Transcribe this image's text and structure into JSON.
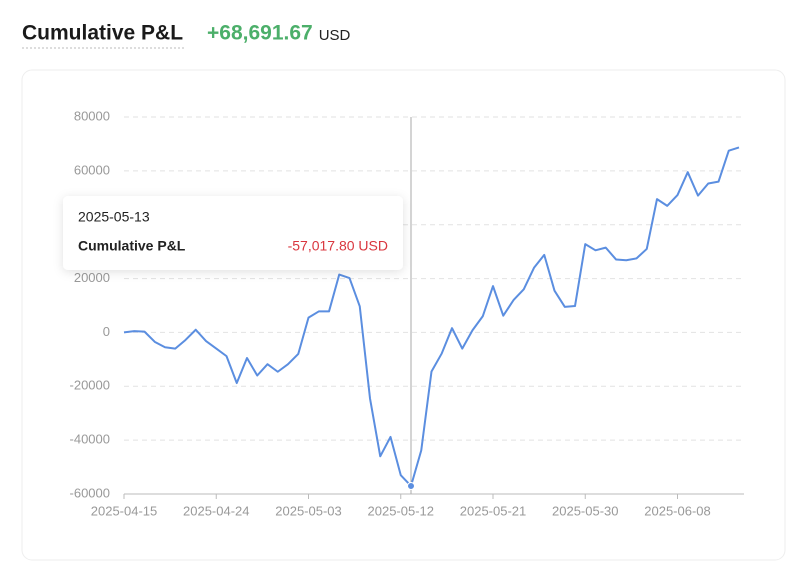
{
  "chart_data": {
    "type": "line",
    "title": "Cumulative P&L",
    "total": "+68,691.67",
    "unit": "USD",
    "categories": [
      "2025-04-15",
      null,
      null,
      null,
      null,
      null,
      null,
      null,
      null,
      "2025-04-24",
      null,
      null,
      null,
      null,
      null,
      null,
      null,
      null,
      "2025-05-03",
      null,
      null,
      null,
      null,
      null,
      null,
      null,
      null,
      "2025-05-12",
      null,
      null,
      null,
      null,
      null,
      null,
      null,
      null,
      "2025-05-21",
      null,
      null,
      null,
      null,
      null,
      null,
      null,
      null,
      "2025-05-30",
      null,
      null,
      null,
      null,
      null,
      null,
      null,
      null,
      "2025-06-08",
      null,
      null,
      null,
      null,
      null,
      null
    ],
    "series": [
      {
        "name": "Cumulative P&L",
        "color": "#5b8ee0",
        "values": [
          0,
          500,
          300,
          -3500,
          -5500,
          -6000,
          -2800,
          1000,
          -3200,
          -6000,
          -8800,
          -18800,
          -9500,
          -16000,
          -11800,
          -14600,
          -11800,
          -8000,
          5500,
          7800,
          7800,
          21500,
          20200,
          9700,
          -24500,
          -46000,
          -38800,
          -53000,
          -57017.8,
          -43800,
          -14500,
          -7800,
          1600,
          -6000,
          800,
          6000,
          17200,
          6200,
          12000,
          16000,
          24000,
          28800,
          15500,
          9500,
          9800,
          32800,
          30500,
          31500,
          27100,
          26800,
          27500,
          31000,
          49500,
          47000,
          51000,
          59500,
          50800,
          55300,
          56000,
          67500,
          68691.67
        ]
      }
    ],
    "ylim": [
      -60000,
      80000
    ],
    "yticks": [
      -60000,
      -40000,
      -20000,
      0,
      20000,
      40000,
      60000,
      80000
    ],
    "grid": true,
    "tooltip": {
      "date": "2025-05-13",
      "label": "Cumulative P&L",
      "value": -57017.8,
      "value_label": "-57,017.80 USD"
    }
  }
}
